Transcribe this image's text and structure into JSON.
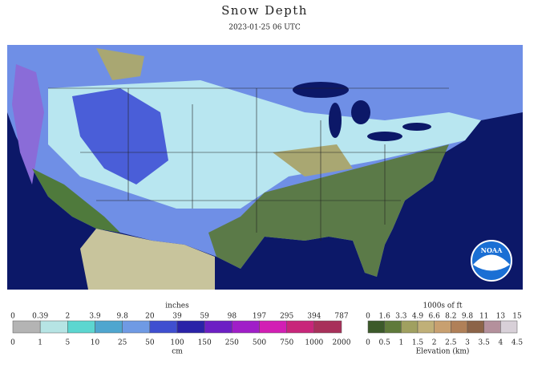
{
  "header": {
    "title": "Snow Depth",
    "subtitle": "2023-01-25 06 UTC"
  },
  "map": {
    "logo": "NOAA"
  },
  "snow_legend": {
    "top_label": "inches",
    "top_ticks": [
      "0",
      "0.39",
      "2",
      "3.9",
      "9.8",
      "20",
      "39",
      "59",
      "98",
      "197",
      "295",
      "394",
      "787"
    ],
    "bottom_ticks": [
      "0",
      "1",
      "5",
      "10",
      "25",
      "50",
      "100",
      "150",
      "250",
      "500",
      "750",
      "1000",
      "2000"
    ],
    "bottom_label": "cm",
    "colors": [
      "#b4b4b4",
      "#b6e4e4",
      "#5cd6d0",
      "#4fa6cf",
      "#6f9ae4",
      "#3f4fd0",
      "#2a22a8",
      "#6c1fc4",
      "#a01ec8",
      "#d21fb4",
      "#c8267a",
      "#a8305a"
    ]
  },
  "elevation_legend": {
    "top_label": "1000s of ft",
    "top_ticks": [
      "0",
      "1.6",
      "3.3",
      "4.9",
      "6.6",
      "8.2",
      "9.8",
      "11",
      "13",
      "15"
    ],
    "bottom_ticks": [
      "0",
      "0.5",
      "1",
      "1.5",
      "2",
      "2.5",
      "3",
      "3.5",
      "4",
      "4.5"
    ],
    "bottom_label": "Elevation (km)",
    "colors": [
      "#3c5a2a",
      "#5f7a3a",
      "#a0a060",
      "#c0b078",
      "#c8a070",
      "#b08058",
      "#8c6448",
      "#b4909c",
      "#d8d0d8"
    ]
  }
}
